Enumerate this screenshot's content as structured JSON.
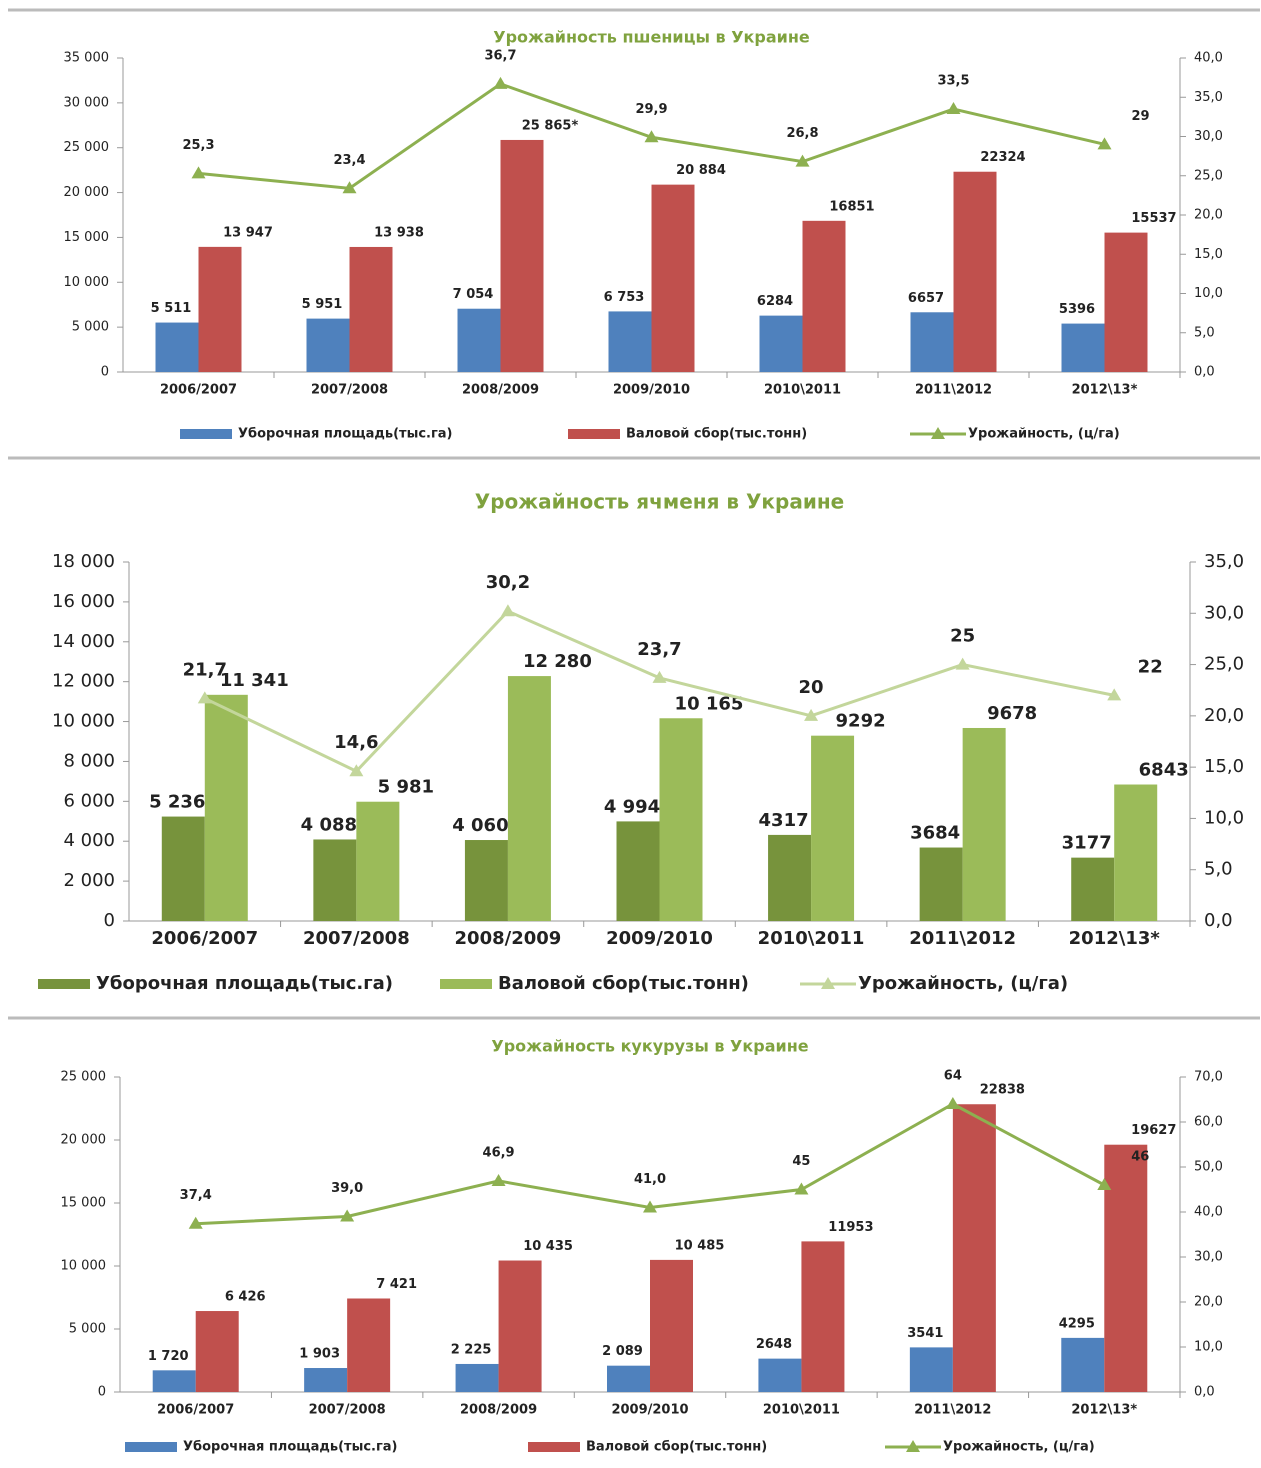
{
  "chart_data": [
    {
      "type": "bar-line",
      "title": "Урожайность пшеницы в Украине",
      "categories": [
        "2006/2007",
        "2007/2008",
        "2008/2009",
        "2009/2010",
        "2010\\2011",
        "2011\\2012",
        "2012\\13*"
      ],
      "series": [
        {
          "name": "Уборочная площадь(тыс.га)",
          "color": "#4f81bd",
          "type": "bar",
          "values": [
            5511,
            5951,
            7054,
            6753,
            6284,
            6657,
            5396
          ],
          "value_labels": [
            "5 511",
            "5 951",
            "7 054",
            "6 753",
            "6284",
            "6657",
            "5396"
          ]
        },
        {
          "name": "Валовой сбор(тыс.тонн)",
          "color": "#c0504d",
          "type": "bar",
          "values": [
            13947,
            13938,
            25865,
            20884,
            16851,
            22324,
            15537
          ],
          "value_labels": [
            "13 947",
            "13 938",
            "25 865*",
            "20 884",
            "16851",
            "22324",
            "15537"
          ]
        },
        {
          "name": "Урожайность, (ц/га)",
          "color": "#8db050",
          "type": "line",
          "axis": "y2",
          "values": [
            25.3,
            23.4,
            36.7,
            29.9,
            26.8,
            33.5,
            29
          ],
          "value_labels": [
            "25,3",
            "23,4",
            "36,7",
            "29,9",
            "26,8",
            "33,5",
            "29"
          ]
        }
      ],
      "ylim": [
        0,
        35000
      ],
      "yticks": [
        0,
        {
          "value": 5000,
          "label": "5 000"
        },
        {
          "value": 10000,
          "label": "10 000"
        },
        {
          "value": 15000,
          "label": "15 000"
        },
        {
          "value": 20000,
          "label": "20 000"
        },
        {
          "value": 25000,
          "label": "25 000"
        },
        {
          "value": 30000,
          "label": "30 000"
        },
        {
          "value": 35000,
          "label": "35 000"
        }
      ],
      "y2lim": [
        0,
        40
      ],
      "y2ticks": [
        {
          "value": 0,
          "label": "0,0"
        },
        {
          "value": 5,
          "label": "5,0"
        },
        {
          "value": 10,
          "label": "10,0"
        },
        {
          "value": 15,
          "label": "15,0"
        },
        {
          "value": 20,
          "label": "20,0"
        },
        {
          "value": 25,
          "label": "25,0"
        },
        {
          "value": 30,
          "label": "30,0"
        },
        {
          "value": 35,
          "label": "35,0"
        },
        {
          "value": 40,
          "label": "40,0"
        }
      ],
      "legend": "bottom"
    },
    {
      "type": "bar-line",
      "title": "Урожайность ячменя в Украине",
      "categories": [
        "2006/2007",
        "2007/2008",
        "2008/2009",
        "2009/2010",
        "2010\\2011",
        "2011\\2012",
        "2012\\13*"
      ],
      "series": [
        {
          "name": "Уборочная площадь(тыс.га)",
          "color": "#77933c",
          "type": "bar",
          "values": [
            5236,
            4088,
            4060,
            4994,
            4317,
            3684,
            3177
          ],
          "value_labels": [
            "5 236",
            "4 088",
            "4 060",
            "4 994",
            "4317",
            "3684",
            "3177"
          ]
        },
        {
          "name": "Валовой сбор(тыс.тонн)",
          "color": "#9bbb59",
          "type": "bar",
          "values": [
            11341,
            5981,
            12280,
            10165,
            9292,
            9678,
            6843
          ],
          "value_labels": [
            "11 341",
            "5 981",
            "12 280",
            "10 165",
            "9292",
            "9678",
            "6843"
          ]
        },
        {
          "name": "Урожайность, (ц/га)",
          "color": "#c3d69b",
          "type": "line",
          "axis": "y2",
          "values": [
            21.7,
            14.6,
            30.2,
            23.7,
            20,
            25,
            22
          ],
          "value_labels": [
            "21,7",
            "14,6",
            "30,2",
            "23,7",
            "20",
            "25",
            "22"
          ]
        }
      ],
      "ylim": [
        0,
        18000
      ],
      "yticks": [
        0,
        {
          "value": 2000,
          "label": "2 000"
        },
        {
          "value": 4000,
          "label": "4 000"
        },
        {
          "value": 6000,
          "label": "6 000"
        },
        {
          "value": 8000,
          "label": "8 000"
        },
        {
          "value": 10000,
          "label": "10 000"
        },
        {
          "value": 12000,
          "label": "12 000"
        },
        {
          "value": 14000,
          "label": "14 000"
        },
        {
          "value": 16000,
          "label": "16 000"
        },
        {
          "value": 18000,
          "label": "18 000"
        }
      ],
      "y2lim": [
        0,
        35
      ],
      "y2ticks": [
        {
          "value": 0,
          "label": "0,0"
        },
        {
          "value": 5,
          "label": "5,0"
        },
        {
          "value": 10,
          "label": "10,0"
        },
        {
          "value": 15,
          "label": "15,0"
        },
        {
          "value": 20,
          "label": "20,0"
        },
        {
          "value": 25,
          "label": "25,0"
        },
        {
          "value": 30,
          "label": "30,0"
        },
        {
          "value": 35,
          "label": "35,0"
        }
      ],
      "legend": "bottom"
    },
    {
      "type": "bar-line",
      "title": "Урожайность кукурузы в Украине",
      "categories": [
        "2006/2007",
        "2007/2008",
        "2008/2009",
        "2009/2010",
        "2010\\2011",
        "2011\\2012",
        "2012\\13*"
      ],
      "series": [
        {
          "name": "Уборочная площадь(тыс.га)",
          "color": "#4f81bd",
          "type": "bar",
          "values": [
            1720,
            1903,
            2225,
            2089,
            2648,
            3541,
            4295
          ],
          "value_labels": [
            "1 720",
            "1 903",
            "2 225",
            "2 089",
            "2648",
            "3541",
            "4295"
          ]
        },
        {
          "name": "Валовой сбор(тыс.тонн)",
          "color": "#c0504d",
          "type": "bar",
          "values": [
            6426,
            7421,
            10435,
            10485,
            11953,
            22838,
            19627
          ],
          "value_labels": [
            "6 426",
            "7 421",
            "10 435",
            "10 485",
            "11953",
            "22838",
            "19627"
          ]
        },
        {
          "name": "Урожайность, (ц/га)",
          "color": "#8db050",
          "type": "line",
          "axis": "y2",
          "values": [
            37.4,
            39.0,
            46.9,
            41.0,
            45,
            64,
            46
          ],
          "value_labels": [
            "37,4",
            "39,0",
            "46,9",
            "41,0",
            "45",
            "64",
            "46"
          ]
        }
      ],
      "ylim": [
        0,
        25000
      ],
      "yticks": [
        0,
        {
          "value": 5000,
          "label": "5 000"
        },
        {
          "value": 10000,
          "label": "10 000"
        },
        {
          "value": 15000,
          "label": "15 000"
        },
        {
          "value": 20000,
          "label": "20 000"
        },
        {
          "value": 25000,
          "label": "25 000"
        }
      ],
      "y2lim": [
        0,
        70
      ],
      "y2ticks": [
        {
          "value": 0,
          "label": "0,0"
        },
        {
          "value": 10,
          "label": "10,0"
        },
        {
          "value": 20,
          "label": "20,0"
        },
        {
          "value": 30,
          "label": "30,0"
        },
        {
          "value": 40,
          "label": "40,0"
        },
        {
          "value": 50,
          "label": "50,0"
        },
        {
          "value": 60,
          "label": "60,0"
        },
        {
          "value": 70,
          "label": "70,0"
        }
      ],
      "legend": "bottom"
    }
  ]
}
